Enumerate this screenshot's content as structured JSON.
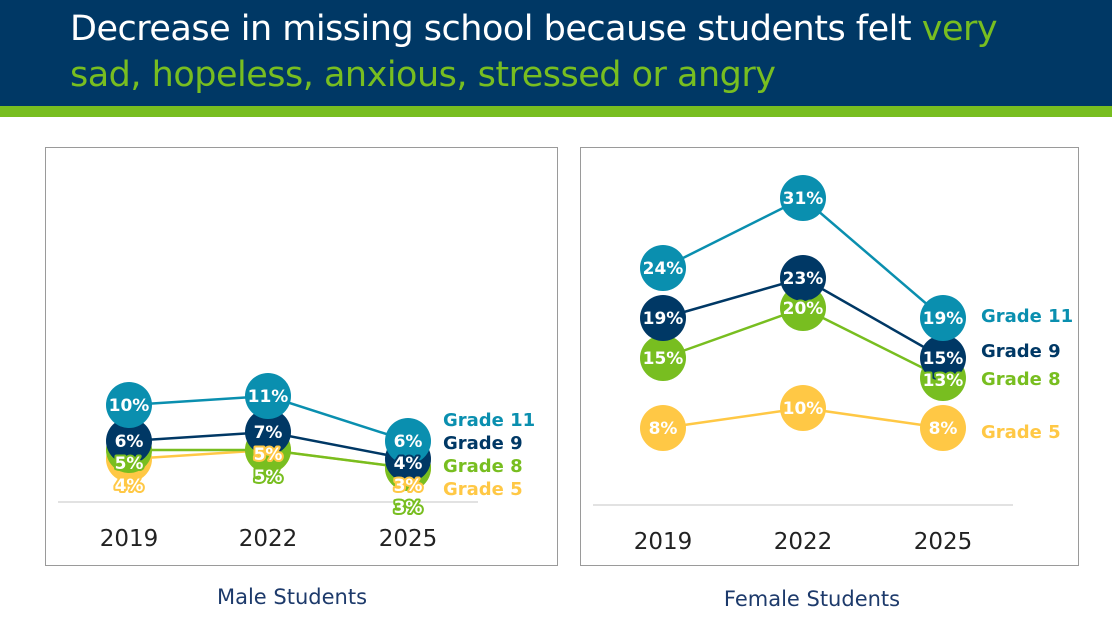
{
  "title": {
    "part1": "Decrease in missing school because students felt ",
    "part2": "very sad, hopeless, anxious, stressed or angry"
  },
  "colors": {
    "header": "#003865",
    "accent": "#78BE20"
  },
  "chart_data": [
    {
      "type": "line",
      "title": "Male Students",
      "categories": [
        "2019",
        "2022",
        "2025"
      ],
      "ylabel": "",
      "xlabel": "",
      "ylim": [
        0,
        12
      ],
      "series": [
        {
          "name": "Grade 5",
          "color": "#FFC845",
          "values": [
            4,
            5,
            3
          ]
        },
        {
          "name": "Grade 8",
          "color": "#78BE20",
          "values": [
            5,
            5,
            3
          ]
        },
        {
          "name": "Grade 9",
          "color": "#003865",
          "values": [
            6,
            7,
            4
          ]
        },
        {
          "name": "Grade 11",
          "color": "#0A8FAF",
          "values": [
            10,
            11,
            6
          ]
        }
      ]
    },
    {
      "type": "line",
      "title": "Female Students",
      "categories": [
        "2019",
        "2022",
        "2025"
      ],
      "ylabel": "",
      "xlabel": "",
      "ylim": [
        0,
        32
      ],
      "series": [
        {
          "name": "Grade 5",
          "color": "#FFC845",
          "values": [
            8,
            10,
            8
          ]
        },
        {
          "name": "Grade 8",
          "color": "#78BE20",
          "values": [
            15,
            20,
            13
          ]
        },
        {
          "name": "Grade 9",
          "color": "#003865",
          "values": [
            19,
            23,
            15
          ]
        },
        {
          "name": "Grade 11",
          "color": "#0A8FAF",
          "values": [
            24,
            31,
            19
          ]
        }
      ]
    }
  ]
}
